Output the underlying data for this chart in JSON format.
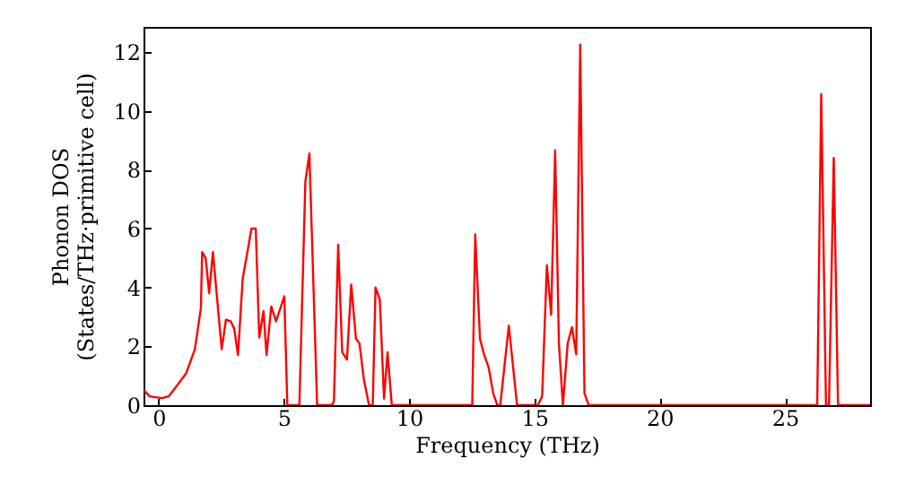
{
  "chart_data": {
    "type": "line",
    "xlabel": "Frequency (THz)",
    "ylabel": "Phonon DOS\n(States/THz·primitive cell)",
    "x": [
      -0.57,
      -0.36,
      0.14,
      0.4,
      0.74,
      1.1,
      1.45,
      1.69,
      1.74,
      1.88,
      2.02,
      2.17,
      2.52,
      2.69,
      2.88,
      3.02,
      3.17,
      3.36,
      3.71,
      3.88,
      4.02,
      4.19,
      4.31,
      4.5,
      4.69,
      5.02,
      5.14,
      5.62,
      5.86,
      6.02,
      6.33,
      6.93,
      7.0,
      7.17,
      7.33,
      7.52,
      7.69,
      7.88,
      8.02,
      8.19,
      8.4,
      8.55,
      8.66,
      8.83,
      9.0,
      9.14,
      9.31,
      12.52,
      12.64,
      12.83,
      13.0,
      13.17,
      13.36,
      13.52,
      13.64,
      13.98,
      14.31,
      15.14,
      15.31,
      15.5,
      15.67,
      15.83,
      15.98,
      16.14,
      16.33,
      16.5,
      16.67,
      16.83,
      17.0,
      17.17,
      26.29,
      26.45,
      26.64,
      26.76,
      26.95,
      27.12,
      28.4
    ],
    "series": [
      {
        "color": "#ff0000",
        "values": [
          0.5,
          0.3,
          0.24,
          0.3,
          0.67,
          1.08,
          1.9,
          3.3,
          5.2,
          5.0,
          3.8,
          5.2,
          1.9,
          2.9,
          2.85,
          2.6,
          1.7,
          4.3,
          6.0,
          6.0,
          2.3,
          3.2,
          1.7,
          3.35,
          2.85,
          3.7,
          0,
          0,
          7.6,
          8.55,
          0,
          0,
          0.15,
          5.45,
          1.8,
          1.55,
          4.1,
          2.25,
          2.1,
          0.9,
          0,
          0,
          4.0,
          3.6,
          0.22,
          1.8,
          0,
          0,
          5.8,
          2.25,
          1.7,
          1.3,
          0.4,
          0,
          0,
          2.7,
          0,
          0,
          0.3,
          4.75,
          3.07,
          8.66,
          2.1,
          0,
          2.1,
          2.65,
          1.73,
          12.25,
          0.4,
          0,
          0,
          10.57,
          0,
          0,
          8.4,
          0,
          0
        ]
      }
    ],
    "xlim": [
      -0.6,
      28.4
    ],
    "ylim": [
      0,
      12.85
    ],
    "xticks": [
      0,
      5,
      10,
      15,
      20,
      25
    ],
    "yticks": [
      0,
      2,
      4,
      6,
      8,
      10,
      12
    ],
    "grid": false,
    "marker": "none",
    "line_style": "solid"
  }
}
